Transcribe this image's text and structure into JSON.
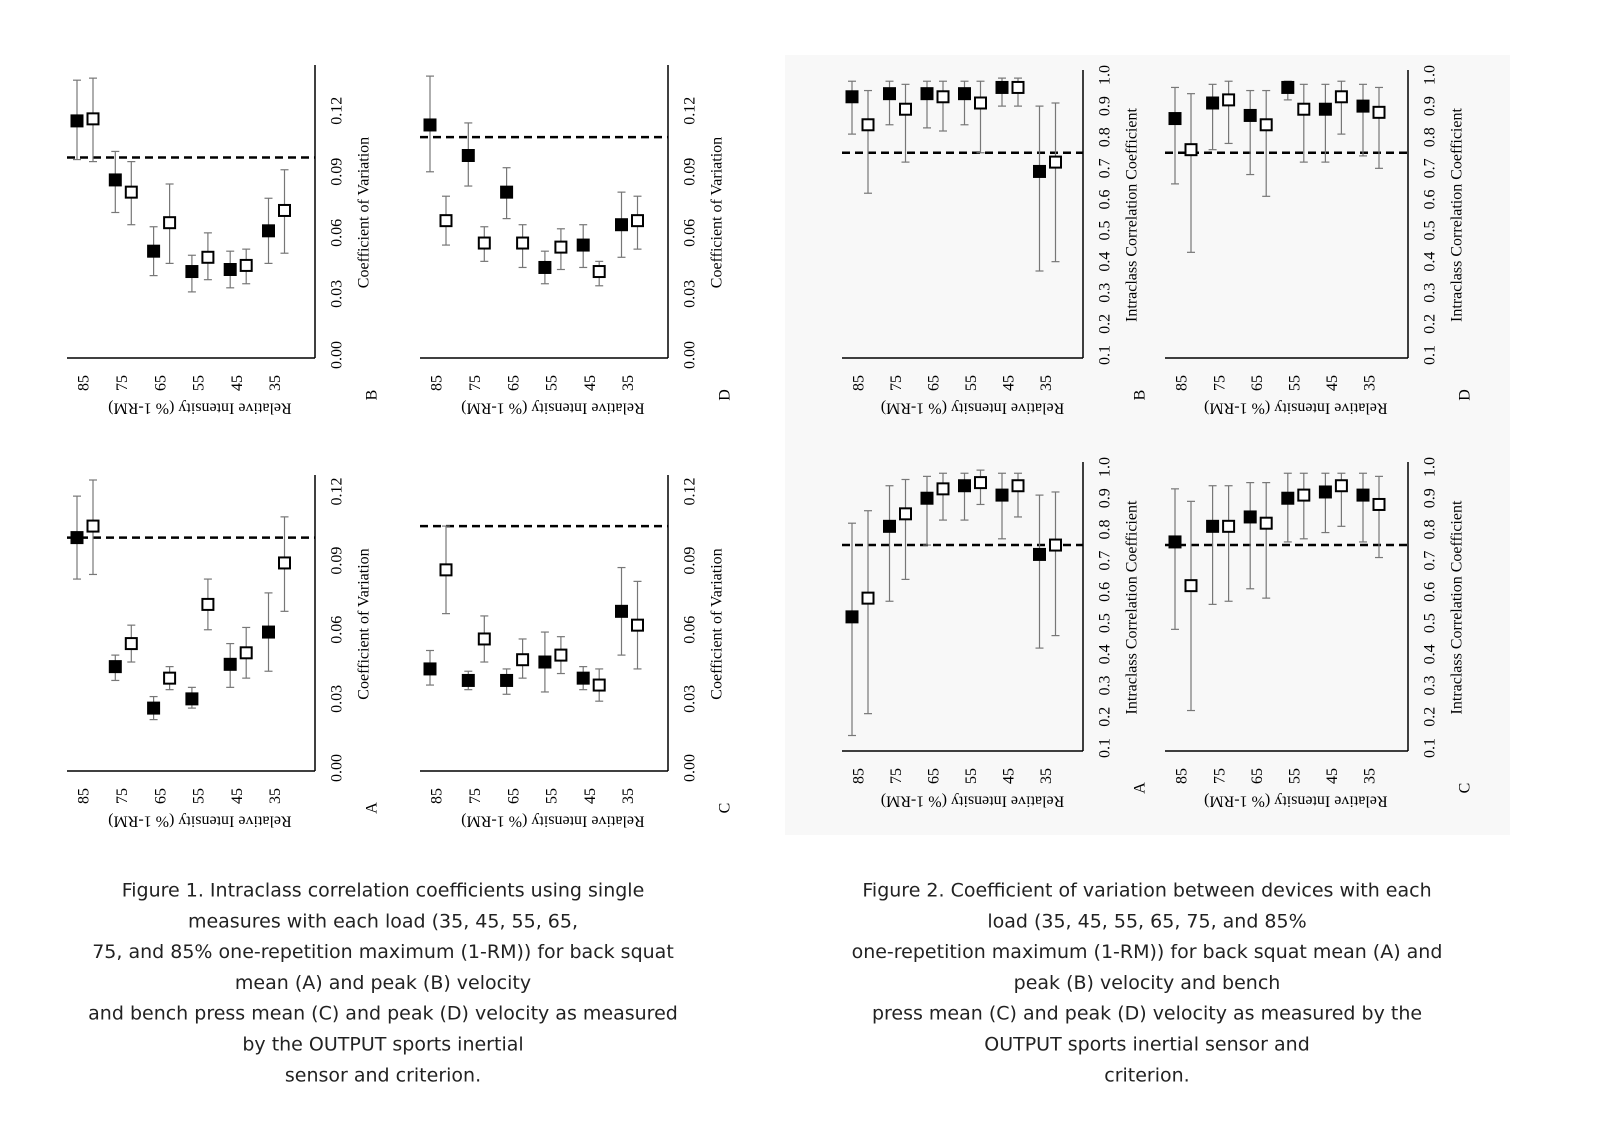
{
  "chart_data": [
    {
      "type": "dot",
      "panel_label": "B",
      "x_label": "Relative Intensity (% 1-RM)",
      "y_label": "Coefficient of Variation",
      "categories": [
        "85",
        "75",
        "65",
        "55",
        "45",
        "35"
      ],
      "ylim": [
        0,
        0.14
      ],
      "yticks": [
        {
          "value": 0,
          "label": "0.00"
        },
        0.03,
        0.06,
        0.09,
        0.12
      ],
      "ref_line": 0.097,
      "series": [
        {
          "marker": "filled",
          "color": "#000000",
          "values": [
            0.115,
            0.086,
            0.051,
            0.041,
            0.042,
            0.061
          ],
          "lower": [
            0.096,
            0.07,
            0.039,
            0.031,
            0.033,
            0.045
          ],
          "upper": [
            0.135,
            0.1,
            0.063,
            0.049,
            0.051,
            0.077
          ]
        },
        {
          "marker": "open",
          "color": "#000000",
          "values": [
            0.116,
            0.08,
            0.065,
            0.048,
            0.044,
            0.071
          ],
          "lower": [
            0.095,
            0.064,
            0.045,
            0.037,
            0.035,
            0.05
          ],
          "upper": [
            0.136,
            0.095,
            0.084,
            0.06,
            0.052,
            0.091
          ]
        }
      ]
    },
    {
      "type": "dot",
      "panel_label": "D",
      "x_label": "Relative Intensity (% 1-RM)",
      "y_label": "Coefficient of Variation",
      "categories": [
        "85",
        "75",
        "65",
        "55",
        "45",
        "35"
      ],
      "ylim": [
        0,
        0.14
      ],
      "yticks": [
        {
          "value": 0,
          "label": "0.00"
        },
        0.03,
        0.06,
        0.09,
        0.12
      ],
      "ref_line": 0.107,
      "series": [
        {
          "marker": "filled",
          "color": "#000000",
          "values": [
            0.113,
            0.098,
            0.08,
            0.043,
            0.054,
            0.064
          ],
          "lower": [
            0.09,
            0.083,
            0.067,
            0.035,
            0.043,
            0.048
          ],
          "upper": [
            0.137,
            0.114,
            0.092,
            0.051,
            0.064,
            0.08
          ]
        },
        {
          "marker": "open",
          "color": "#000000",
          "values": [
            0.066,
            0.055,
            0.055,
            0.053,
            0.041,
            0.066
          ],
          "lower": [
            0.054,
            0.046,
            0.043,
            0.042,
            0.034,
            0.052
          ],
          "upper": [
            0.078,
            0.063,
            0.064,
            0.062,
            0.046,
            0.078
          ]
        }
      ]
    },
    {
      "type": "dot",
      "panel_label": "A",
      "x_label": "Relative Intensity (% 1-RM)",
      "y_label": "Coefficient of Variation",
      "categories": [
        "85",
        "75",
        "65",
        "55",
        "45",
        "35"
      ],
      "ylim": [
        0,
        0.125
      ],
      "yticks": [
        {
          "value": 0,
          "label": "0.00"
        },
        0.03,
        0.06,
        0.09,
        0.12
      ],
      "ref_line": 0.1,
      "series": [
        {
          "marker": "filled",
          "color": "#000000",
          "values": [
            0.1,
            0.044,
            0.026,
            0.03,
            0.045,
            0.059
          ],
          "lower": [
            0.082,
            0.038,
            0.021,
            0.026,
            0.035,
            0.042
          ],
          "upper": [
            0.118,
            0.049,
            0.031,
            0.035,
            0.054,
            0.076
          ]
        },
        {
          "marker": "open",
          "color": "#000000",
          "values": [
            0.105,
            0.054,
            0.039,
            0.071,
            0.05,
            0.089
          ],
          "lower": [
            0.084,
            0.046,
            0.034,
            0.06,
            0.039,
            0.068
          ],
          "upper": [
            0.125,
            0.062,
            0.044,
            0.082,
            0.061,
            0.109
          ]
        }
      ]
    },
    {
      "type": "dot",
      "panel_label": "C",
      "x_label": "Relative Intensity (% 1-RM)",
      "y_label": "Coefficient of Variation",
      "categories": [
        "85",
        "75",
        "65",
        "55",
        "45",
        "35"
      ],
      "ylim": [
        0,
        0.125
      ],
      "yticks": [
        {
          "value": 0,
          "label": "0.00"
        },
        0.03,
        0.06,
        0.09,
        0.12
      ],
      "ref_line": 0.105,
      "series": [
        {
          "marker": "filled",
          "color": "#000000",
          "values": [
            0.043,
            0.038,
            0.038,
            0.046,
            0.039,
            0.068
          ],
          "lower": [
            0.036,
            0.034,
            0.032,
            0.033,
            0.034,
            0.049
          ],
          "upper": [
            0.051,
            0.042,
            0.043,
            0.059,
            0.044,
            0.087
          ]
        },
        {
          "marker": "open",
          "color": "#000000",
          "values": [
            0.086,
            0.056,
            0.047,
            0.049,
            0.036,
            0.062
          ],
          "lower": [
            0.067,
            0.046,
            0.039,
            0.041,
            0.029,
            0.043
          ],
          "upper": [
            0.105,
            0.066,
            0.056,
            0.057,
            0.043,
            0.081
          ]
        }
      ]
    },
    {
      "type": "dot",
      "panel_label": "B",
      "x_label": "Relative Intensity (% 1-RM)",
      "y_label": "Intraclass Correlation Coefficient",
      "categories": [
        "85",
        "75",
        "65",
        "55",
        "45",
        "35"
      ],
      "ylim": [
        0.1,
        1
      ],
      "yticks": [
        0.1,
        0.2,
        0.3,
        0.4,
        0.5,
        0.6,
        0.7,
        0.8,
        0.9,
        {
          "value": 1,
          "label": "1.0"
        }
      ],
      "ref_line": 0.75,
      "series": [
        {
          "marker": "filled",
          "color": "#000000",
          "values": [
            0.93,
            0.94,
            0.94,
            0.94,
            0.96,
            0.69
          ],
          "lower": [
            0.81,
            0.84,
            0.83,
            0.84,
            0.9,
            0.37
          ],
          "upper": [
            0.98,
            0.98,
            0.98,
            0.98,
            0.99,
            0.9
          ]
        },
        {
          "marker": "open",
          "color": "#000000",
          "values": [
            0.84,
            0.89,
            0.93,
            0.91,
            0.96,
            0.72
          ],
          "lower": [
            0.62,
            0.72,
            0.82,
            0.75,
            0.9,
            0.4
          ],
          "upper": [
            0.95,
            0.97,
            0.98,
            0.98,
            0.99,
            0.91
          ]
        }
      ]
    },
    {
      "type": "dot",
      "panel_label": "D",
      "x_label": "Relative Intensity (% 1-RM)",
      "y_label": "Intraclass Correlation Coefficient",
      "categories": [
        "85",
        "75",
        "65",
        "55",
        "45",
        "35"
      ],
      "ylim": [
        0.1,
        1
      ],
      "yticks": [
        0.1,
        0.2,
        0.3,
        0.4,
        0.5,
        0.6,
        0.7,
        0.8,
        0.9,
        {
          "value": 1,
          "label": "1.0"
        }
      ],
      "ref_line": 0.75,
      "series": [
        {
          "marker": "filled",
          "color": "#000000",
          "values": [
            0.86,
            0.91,
            0.87,
            0.96,
            0.89,
            0.9
          ],
          "lower": [
            0.65,
            0.76,
            0.68,
            0.92,
            0.72,
            0.74
          ],
          "upper": [
            0.96,
            0.97,
            0.95,
            0.98,
            0.97,
            0.97
          ]
        },
        {
          "marker": "open",
          "color": "#000000",
          "values": [
            0.76,
            0.92,
            0.84,
            0.89,
            0.93,
            0.88
          ],
          "lower": [
            0.43,
            0.78,
            0.61,
            0.72,
            0.81,
            0.7
          ],
          "upper": [
            0.94,
            0.98,
            0.95,
            0.97,
            0.98,
            0.96
          ]
        }
      ]
    },
    {
      "type": "dot",
      "panel_label": "A",
      "x_label": "Relative Intensity (% 1-RM)",
      "y_label": "Intraclass Correlation Coefficient",
      "categories": [
        "85",
        "75",
        "65",
        "55",
        "45",
        "35"
      ],
      "ylim": [
        0.1,
        1
      ],
      "yticks": [
        0.1,
        0.2,
        0.3,
        0.4,
        0.5,
        0.6,
        0.7,
        0.8,
        0.9,
        {
          "value": 1,
          "label": "1.0"
        }
      ],
      "ref_line": 0.75,
      "series": [
        {
          "marker": "filled",
          "color": "#000000",
          "values": [
            0.52,
            0.81,
            0.9,
            0.94,
            0.91,
            0.72
          ],
          "lower": [
            0.14,
            0.57,
            0.75,
            0.83,
            0.77,
            0.42
          ],
          "upper": [
            0.82,
            0.94,
            0.97,
            0.98,
            0.98,
            0.91
          ]
        },
        {
          "marker": "open",
          "color": "#000000",
          "values": [
            0.58,
            0.85,
            0.93,
            0.95,
            0.94,
            0.75
          ],
          "lower": [
            0.21,
            0.64,
            0.83,
            0.88,
            0.84,
            0.46
          ],
          "upper": [
            0.86,
            0.96,
            0.98,
            0.99,
            0.98,
            0.92
          ]
        }
      ]
    },
    {
      "type": "dot",
      "panel_label": "C",
      "x_label": "Relative Intensity (% 1-RM)",
      "y_label": "Intraclass Correlation Coefficient",
      "categories": [
        "85",
        "75",
        "65",
        "55",
        "45",
        "35"
      ],
      "ylim": [
        0.1,
        1
      ],
      "yticks": [
        0.1,
        0.2,
        0.3,
        0.4,
        0.5,
        0.6,
        0.7,
        0.8,
        0.9,
        {
          "value": 1,
          "label": "1.0"
        }
      ],
      "ref_line": 0.75,
      "series": [
        {
          "marker": "filled",
          "color": "#000000",
          "values": [
            0.76,
            0.81,
            0.84,
            0.9,
            0.92,
            0.91
          ],
          "lower": [
            0.48,
            0.56,
            0.61,
            0.76,
            0.79,
            0.76
          ],
          "upper": [
            0.93,
            0.94,
            0.95,
            0.98,
            0.98,
            0.98
          ]
        },
        {
          "marker": "open",
          "color": "#000000",
          "values": [
            0.62,
            0.81,
            0.82,
            0.91,
            0.94,
            0.88
          ],
          "lower": [
            0.22,
            0.57,
            0.58,
            0.77,
            0.81,
            0.71
          ],
          "upper": [
            0.89,
            0.94,
            0.95,
            0.98,
            0.98,
            0.97
          ]
        }
      ]
    }
  ],
  "captions": [
    [
      "Figure 1. Intraclass correlation coefficients using single",
      "measures with each load (35, 45, 55, 65,",
      "75, and 85% one-repetition maximum (1-RM)) for back squat",
      "mean (A) and peak (B) velocity",
      "and bench press mean (C) and peak (D) velocity as measured",
      "by the OUTPUT sports inertial",
      "sensor and criterion."
    ],
    [
      "Figure 2. Coefficient of variation between devices with each",
      "load (35, 45, 55, 65, 75, and 85%",
      "one-repetition maximum (1-RM)) for back squat mean (A) and",
      "peak (B) velocity and bench",
      "press mean (C) and peak (D) velocity as measured by the",
      "OUTPUT sports inertial sensor and",
      "criterion."
    ]
  ]
}
